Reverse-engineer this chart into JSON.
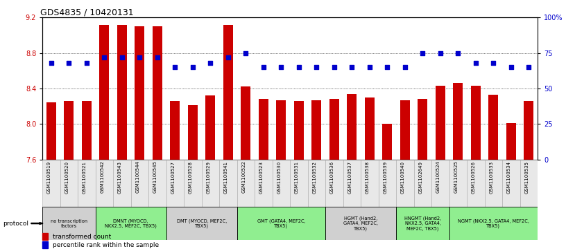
{
  "title": "GDS4835 / 10420131",
  "samples": [
    "GSM1100519",
    "GSM1100520",
    "GSM1100521",
    "GSM1100542",
    "GSM1100543",
    "GSM1100544",
    "GSM1100545",
    "GSM1100527",
    "GSM1100528",
    "GSM1100529",
    "GSM1100541",
    "GSM1100522",
    "GSM1100523",
    "GSM1100530",
    "GSM1100531",
    "GSM1100532",
    "GSM1100536",
    "GSM1100537",
    "GSM1100538",
    "GSM1100539",
    "GSM1100540",
    "GSM1102649",
    "GSM1100524",
    "GSM1100525",
    "GSM1100526",
    "GSM1100533",
    "GSM1100534",
    "GSM1100535"
  ],
  "bar_values": [
    8.24,
    8.26,
    8.26,
    9.12,
    9.12,
    9.1,
    9.1,
    8.26,
    8.21,
    8.32,
    9.12,
    8.42,
    8.28,
    8.27,
    8.26,
    8.27,
    8.28,
    8.34,
    8.3,
    8.0,
    8.27,
    8.28,
    8.43,
    8.46,
    8.43,
    8.33,
    8.01,
    8.26
  ],
  "dot_values_pct": [
    68,
    68,
    68,
    72,
    72,
    72,
    72,
    65,
    65,
    68,
    72,
    75,
    65,
    65,
    65,
    65,
    65,
    65,
    65,
    65,
    65,
    75,
    75,
    75,
    68,
    68,
    65,
    65
  ],
  "ylim": [
    7.6,
    9.2
  ],
  "yticks_left": [
    7.6,
    8.0,
    8.4,
    8.8,
    9.2
  ],
  "yticks_right": [
    0,
    25,
    50,
    75,
    100
  ],
  "bar_color": "#cc0000",
  "dot_color": "#0000cc",
  "protocol_groups": [
    {
      "label": "no transcription\nfactors",
      "start": 0,
      "end": 3,
      "color": "#d0d0d0"
    },
    {
      "label": "DMNT (MYOCD,\nNKX2.5, MEF2C, TBX5)",
      "start": 3,
      "end": 7,
      "color": "#90ee90"
    },
    {
      "label": "DMT (MYOCD, MEF2C,\nTBX5)",
      "start": 7,
      "end": 11,
      "color": "#d0d0d0"
    },
    {
      "label": "GMT (GATA4, MEF2C,\nTBX5)",
      "start": 11,
      "end": 16,
      "color": "#90ee90"
    },
    {
      "label": "HGMT (Hand2,\nGATA4, MEF2C,\nTBX5)",
      "start": 16,
      "end": 20,
      "color": "#d0d0d0"
    },
    {
      "label": "HNGMT (Hand2,\nNKX2.5, GATA4,\nMEF2C, TBX5)",
      "start": 20,
      "end": 23,
      "color": "#90ee90"
    },
    {
      "label": "NGMT (NKX2.5, GATA4, MEF2C,\nTBX5)",
      "start": 23,
      "end": 28,
      "color": "#90ee90"
    }
  ],
  "legend_bar_label": "transformed count",
  "legend_dot_label": "percentile rank within the sample",
  "protocol_label": "protocol",
  "title_fontsize": 9,
  "tick_fontsize": 7,
  "label_fontsize": 7
}
